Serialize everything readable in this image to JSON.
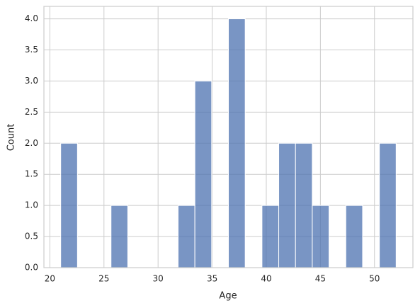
{
  "chart_data": {
    "type": "histogram",
    "xlabel": "Age",
    "ylabel": "Count",
    "bins": [
      21,
      22.55,
      24.1,
      25.65,
      27.2,
      28.75,
      30.3,
      31.85,
      33.4,
      34.95,
      36.5,
      38.05,
      39.6,
      41.15,
      42.7,
      44.25,
      45.8,
      47.35,
      48.9,
      50.45,
      52
    ],
    "counts": [
      2,
      0,
      0,
      1,
      0,
      0,
      0,
      1,
      3,
      0,
      4,
      0,
      1,
      2,
      2,
      1,
      0,
      1,
      0,
      2
    ],
    "color": "#4c72b0",
    "xlim": [
      19.45,
      53.55
    ],
    "xticks": [
      20,
      25,
      30,
      35,
      40,
      45,
      50
    ],
    "ylim": [
      0,
      4.2
    ],
    "yticks": [
      {
        "value": 0,
        "label": "0.0"
      },
      0.5,
      {
        "value": 1,
        "label": "1.0"
      },
      1.5,
      {
        "value": 2,
        "label": "2.0"
      },
      2.5,
      {
        "value": 3,
        "label": "3.0"
      },
      3.5,
      {
        "value": 4,
        "label": "4.0"
      }
    ],
    "grid": true
  }
}
